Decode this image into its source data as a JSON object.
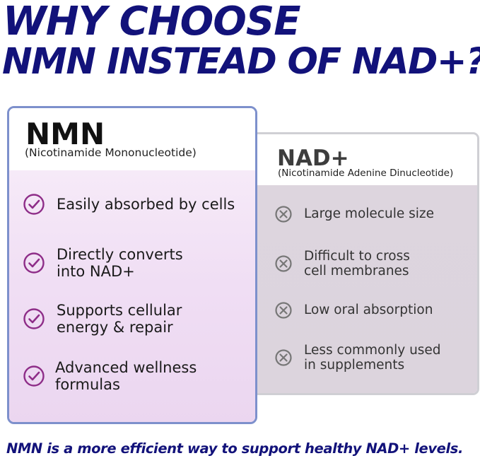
{
  "headline": {
    "line1": "WHY CHOOSE",
    "line2": "NMN INSTEAD OF NAD+?"
  },
  "nmn_card": {
    "title": "NMN",
    "subtitle": "(Nicotinamide Mononucleotide)",
    "icon": "check-circle-icon",
    "items": [
      "Easily absorbed by cells",
      "Directly converts\ninto NAD+",
      "Supports cellular\nenergy & repair",
      "Advanced wellness\nformulas"
    ]
  },
  "nad_card": {
    "title": "NAD+",
    "subtitle": "(Nicotinamide Adenine Dinucleotide)",
    "icon": "x-circle-icon",
    "items": [
      "Large molecule size",
      "Difficult to cross\ncell membranes",
      "Low oral absorption",
      "Less commonly used\nin supplements"
    ]
  },
  "footer": "NMN is a more efficient way to support healthy NAD+ levels.",
  "colors": {
    "headline": "#12127a",
    "check": "#8e2d88",
    "x_mark": "#777777",
    "nmn_border": "#7d90cc",
    "nad_border": "#cfcfd4"
  }
}
